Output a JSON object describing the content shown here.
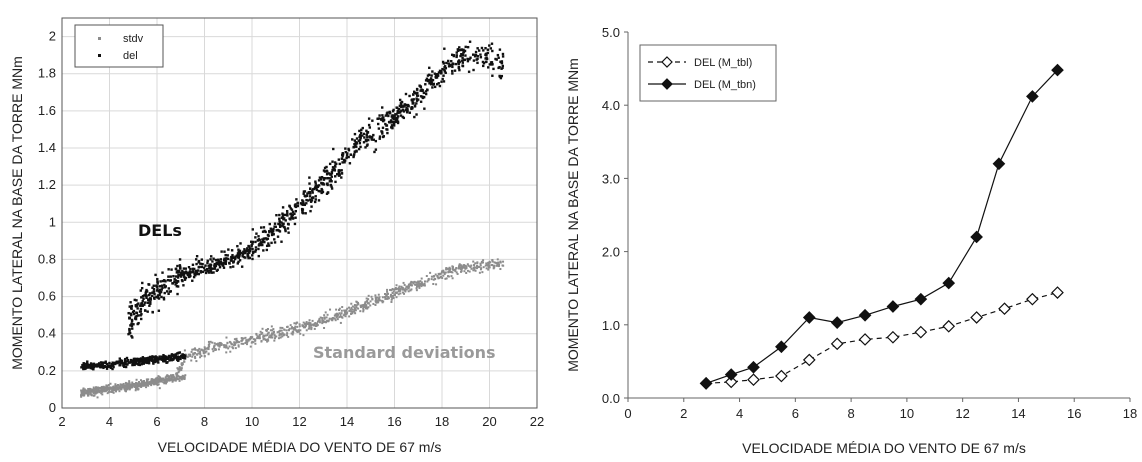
{
  "chart_data": [
    {
      "type": "scatter",
      "xlabel": "VELOCIDADE MÉDIA DO VENTO DE 67 m/s",
      "ylabel": "MOMENTO LATERAL NA BASE DA TORRE MNm",
      "xlim": [
        2,
        22
      ],
      "ylim": [
        0,
        2.1
      ],
      "xticks": [
        "2",
        "4",
        "6",
        "8",
        "10",
        "12",
        "14",
        "16",
        "18",
        "20",
        "22"
      ],
      "yticks": [
        "0",
        "0.2",
        "0.4",
        "0.6",
        "0.8",
        "1",
        "1.2",
        "1.4",
        "1.6",
        "1.8",
        "2"
      ],
      "grid": true,
      "legend_position": "top-left",
      "legend": [
        "stdv",
        "del"
      ],
      "annotations": [
        "DELs",
        "Standard deviations"
      ],
      "colors": {
        "stdv": "#8c8c8c",
        "del": "#111111"
      },
      "series": [
        {
          "name": "stdv",
          "trend": [
            [
              2.8,
              0.08
            ],
            [
              4,
              0.1
            ],
            [
              5.5,
              0.13
            ],
            [
              6.8,
              0.17
            ],
            [
              7.2,
              0.27
            ],
            [
              8,
              0.31
            ],
            [
              9,
              0.34
            ],
            [
              10,
              0.37
            ],
            [
              11,
              0.4
            ],
            [
              12,
              0.43
            ],
            [
              13,
              0.47
            ],
            [
              14,
              0.52
            ],
            [
              15,
              0.57
            ],
            [
              16,
              0.62
            ],
            [
              17,
              0.67
            ],
            [
              18,
              0.72
            ],
            [
              19,
              0.76
            ],
            [
              20.6,
              0.78
            ]
          ]
        },
        {
          "name": "del",
          "trend": [
            [
              2.8,
              0.22
            ],
            [
              4,
              0.23
            ],
            [
              5.5,
              0.25
            ],
            [
              6.5,
              0.27
            ],
            [
              7,
              0.28
            ],
            [
              6,
              0.6
            ],
            [
              7,
              0.72
            ],
            [
              8,
              0.76
            ],
            [
              9,
              0.8
            ],
            [
              10,
              0.87
            ],
            [
              11,
              0.98
            ],
            [
              12,
              1.1
            ],
            [
              13,
              1.22
            ],
            [
              14,
              1.35
            ],
            [
              15,
              1.48
            ],
            [
              16,
              1.58
            ],
            [
              17,
              1.7
            ],
            [
              18,
              1.85
            ],
            [
              19,
              1.9
            ],
            [
              20.6,
              1.83
            ]
          ]
        }
      ]
    },
    {
      "type": "line",
      "xlabel": "VELOCIDADE MÉDIA DO VENTO DE 67 m/s",
      "ylabel": "MOMENTO LATERAL NA BASE DA TORRE MNm",
      "xlim": [
        0,
        18
      ],
      "ylim": [
        0,
        5
      ],
      "xticks": [
        "0",
        "2",
        "4",
        "6",
        "8",
        "10",
        "12",
        "14",
        "16",
        "18"
      ],
      "yticks": [
        "0.0",
        "1.0",
        "2.0",
        "3.0",
        "4.0",
        "5.0"
      ],
      "grid": false,
      "legend_position": "top-left",
      "series": [
        {
          "name": "DEL (M_tbl)",
          "style": "dashed-open-diamond",
          "x": [
            2.8,
            3.7,
            4.5,
            5.5,
            6.5,
            7.5,
            8.5,
            9.5,
            10.5,
            11.5,
            12.5,
            13.5,
            14.5,
            15.4
          ],
          "y": [
            0.2,
            0.22,
            0.25,
            0.3,
            0.52,
            0.74,
            0.8,
            0.83,
            0.9,
            0.98,
            1.1,
            1.22,
            1.35,
            1.44
          ]
        },
        {
          "name": "DEL (M_tbn)",
          "style": "solid-filled-diamond",
          "x": [
            2.8,
            3.7,
            4.5,
            5.5,
            6.5,
            7.5,
            8.5,
            9.5,
            10.5,
            11.5,
            12.5,
            13.3,
            14.5,
            15.4
          ],
          "y": [
            0.2,
            0.32,
            0.42,
            0.7,
            1.1,
            1.03,
            1.13,
            1.25,
            1.35,
            1.57,
            2.2,
            3.2,
            4.12,
            4.48
          ]
        }
      ]
    }
  ]
}
